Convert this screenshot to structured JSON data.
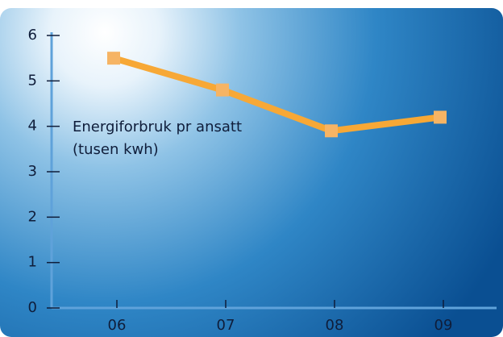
{
  "chart_data": {
    "type": "line",
    "annotations": [
      "Energiforbruk pr ansatt",
      "(tusen kwh)"
    ],
    "categories": [
      "06",
      "07",
      "08",
      "09"
    ],
    "series": [
      {
        "color": "#f7a836",
        "values": [
          5.5,
          4.8,
          3.9,
          4.2
        ]
      }
    ],
    "ylim": [
      0,
      6
    ],
    "yticks": [
      0,
      1,
      2,
      3,
      4,
      5,
      6
    ]
  }
}
